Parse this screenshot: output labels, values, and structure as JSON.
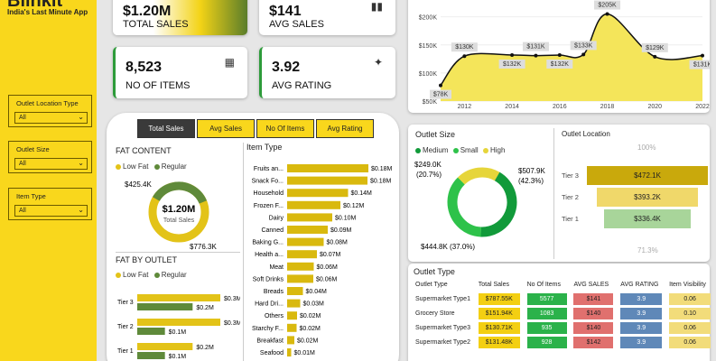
{
  "sidebar": {
    "logo": "Blinkit",
    "tagline": "India's Last Minute App",
    "slicers": [
      {
        "label": "Outlet Location Type",
        "value": "All"
      },
      {
        "label": "Outlet Size",
        "value": "All"
      },
      {
        "label": "Item Type",
        "value": "All"
      }
    ]
  },
  "kpis": [
    {
      "value": "$1.20M",
      "label": "TOTAL SALES",
      "icon": "money-bag-icon"
    },
    {
      "value": "$141",
      "label": "AVG SALES",
      "icon": "bar-chart-icon"
    },
    {
      "value": "8,523",
      "label": "NO OF ITEMS",
      "icon": "boxes-icon"
    },
    {
      "value": "3.92",
      "label": "AVG RATING",
      "icon": "stars-icon"
    }
  ],
  "tabs": [
    "Total Sales",
    "Avg Sales",
    "No Of Items",
    "Avg Rating"
  ],
  "fat_content": {
    "title": "FAT CONTENT",
    "legend": [
      "Low Fat",
      "Regular"
    ],
    "center_value": "$1.20M",
    "center_label": "Total Sales",
    "low_fat_label": "$776.3K",
    "regular_label": "$425.4K",
    "colors": {
      "low_fat": "#e3c318",
      "regular": "#5f8a3a"
    }
  },
  "fat_by_outlet": {
    "title": "FAT BY OUTLET",
    "legend": [
      "Low Fat",
      "Regular"
    ],
    "tiers": [
      {
        "name": "Tier 3",
        "low": "$0.3M",
        "reg": "$0.2M",
        "low_v": 0.3,
        "reg_v": 0.2
      },
      {
        "name": "Tier 2",
        "low": "$0.3M",
        "reg": "$0.1M",
        "low_v": 0.3,
        "reg_v": 0.1
      },
      {
        "name": "Tier 1",
        "low": "$0.2M",
        "reg": "$0.1M",
        "low_v": 0.2,
        "reg_v": 0.1
      }
    ]
  },
  "item_type": {
    "title": "Item Type",
    "items": [
      {
        "name": "Fruits an...",
        "label": "$0.18M",
        "v": 0.18
      },
      {
        "name": "Snack Fo...",
        "label": "$0.18M",
        "v": 0.178
      },
      {
        "name": "Household",
        "label": "$0.14M",
        "v": 0.135
      },
      {
        "name": "Frozen F...",
        "label": "$0.12M",
        "v": 0.118
      },
      {
        "name": "Dairy",
        "label": "$0.10M",
        "v": 0.1
      },
      {
        "name": "Canned",
        "label": "$0.09M",
        "v": 0.09
      },
      {
        "name": "Baking G...",
        "label": "$0.08M",
        "v": 0.081
      },
      {
        "name": "Health a...",
        "label": "$0.07M",
        "v": 0.066
      },
      {
        "name": "Meat",
        "label": "$0.06M",
        "v": 0.059
      },
      {
        "name": "Soft Drinks",
        "label": "$0.06M",
        "v": 0.058
      },
      {
        "name": "Breads",
        "label": "$0.04M",
        "v": 0.035
      },
      {
        "name": "Hard Dri...",
        "label": "$0.03M",
        "v": 0.029
      },
      {
        "name": "Others",
        "label": "$0.02M",
        "v": 0.022
      },
      {
        "name": "Starchy F...",
        "label": "$0.02M",
        "v": 0.021
      },
      {
        "name": "Breakfast",
        "label": "$0.02M",
        "v": 0.016
      },
      {
        "name": "Seafood",
        "label": "$0.01M",
        "v": 0.009
      }
    ]
  },
  "chart_data": {
    "type": "area",
    "x": [
      2011,
      2012,
      2014,
      2015,
      2016,
      2017,
      2018,
      2020,
      2022
    ],
    "values": [
      78,
      130,
      132,
      131,
      132,
      133,
      205,
      129,
      131
    ],
    "labels": [
      "$78K",
      "$130K",
      "$132K",
      "$131K",
      "$132K",
      "$133K",
      "$205K",
      "$129K",
      "$131K"
    ],
    "yticks": [
      "$200K",
      "$150K",
      "$100K",
      "$50K"
    ],
    "ytick_values": [
      200,
      150,
      100,
      50
    ],
    "xticks": [
      "2012",
      "2014",
      "2016",
      "2018",
      "2020",
      "2022"
    ],
    "xtick_values": [
      2012,
      2014,
      2016,
      2018,
      2020,
      2022
    ],
    "ylim": [
      50,
      230
    ],
    "xlim": [
      2011,
      2022
    ],
    "fill": "#f4e55a",
    "line": "#111111"
  },
  "outlet_size": {
    "title": "Outlet Size",
    "legend": [
      "Medium",
      "Small",
      "High"
    ],
    "colors": [
      "#119a3a",
      "#2ec24a",
      "#e6d53a"
    ],
    "labels": [
      "$507.9K\n(42.3%)",
      "$444.8K (37.0%)",
      "$249.0K\n(20.7%)"
    ],
    "label_right_1": "$507.9K",
    "label_right_2": "(42.3%)",
    "label_bottom": "$444.8K (37.0%)",
    "label_left_1": "$249.0K",
    "label_left_2": "(20.7%)",
    "values": [
      507.9,
      444.8,
      249.0
    ]
  },
  "outlet_location": {
    "title": "Outlet Location",
    "top_pct": "100%",
    "bottom_pct": "71.3%",
    "tiers": [
      {
        "name": "Tier 3",
        "label": "$472.1K",
        "color": "#c9a90c",
        "ratio": 1.0
      },
      {
        "name": "Tier 2",
        "label": "$393.2K",
        "color": "#f0d86a",
        "ratio": 0.833
      },
      {
        "name": "Tier 1",
        "label": "$336.4K",
        "color": "#a8d59a",
        "ratio": 0.713
      }
    ]
  },
  "outlet_type": {
    "title": "Outlet Type",
    "headers": [
      "Outlet Type",
      "Total Sales",
      "No Of Items",
      "AVG SALES",
      "AVG RATING",
      "Item Visibility"
    ],
    "rows": [
      [
        "Supermarket Type1",
        "$787.55K",
        "5577",
        "$141",
        "3.9",
        "0.06"
      ],
      [
        "Grocery Store",
        "$151.94K",
        "1083",
        "$140",
        "3.9",
        "0.10"
      ],
      [
        "Supermarket Type3",
        "$130.71K",
        "935",
        "$140",
        "3.9",
        "0.06"
      ],
      [
        "Supermarket Type2",
        "$131.48K",
        "928",
        "$142",
        "3.9",
        "0.06"
      ]
    ]
  }
}
